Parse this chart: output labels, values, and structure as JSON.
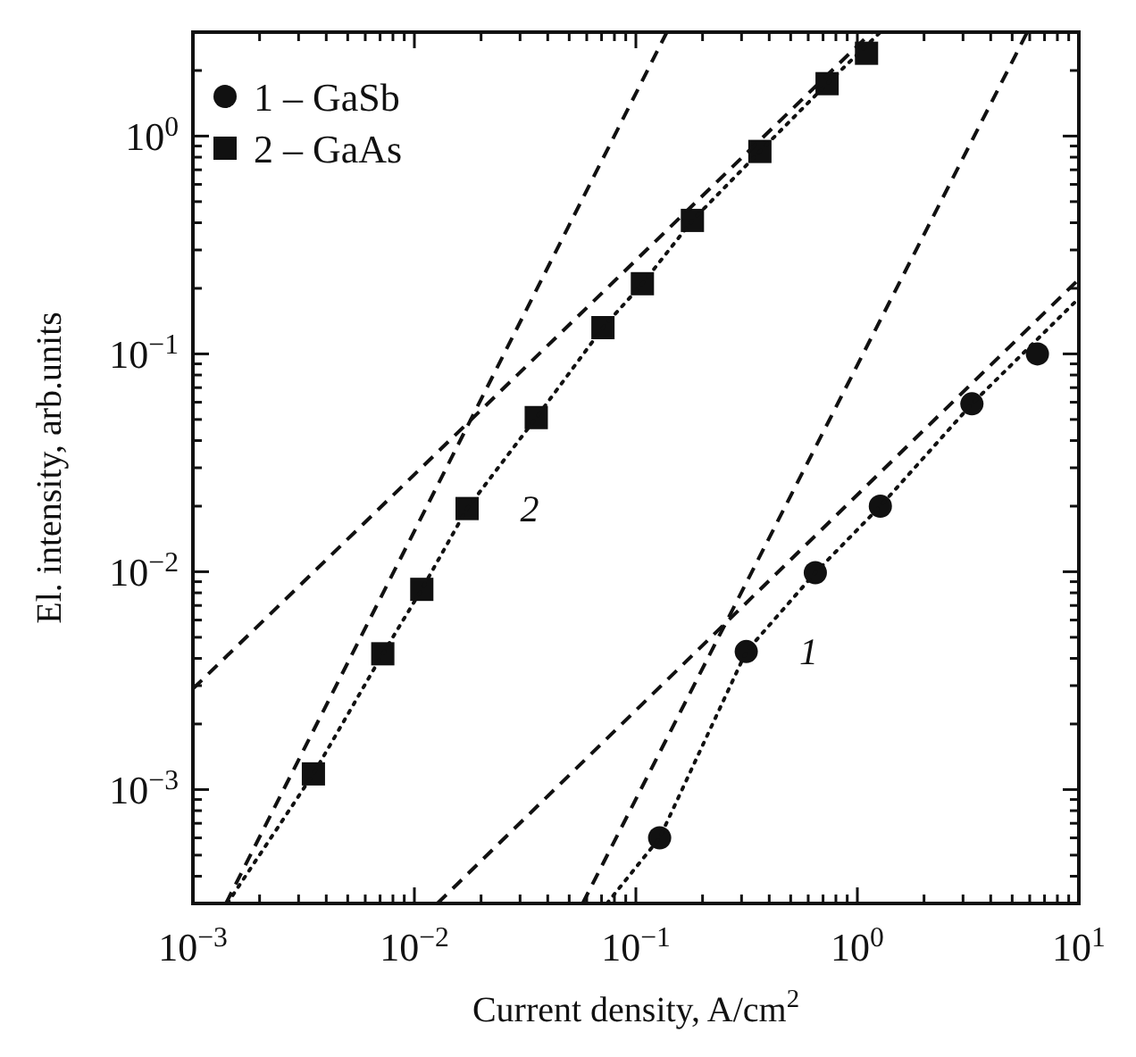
{
  "chart_data": {
    "type": "scatter",
    "xlabel": "Current density, A/cm$^{2}$",
    "ylabel": "El. intensity, arb.units",
    "log": "xy",
    "grid": false,
    "legend": "top left",
    "xlim": [
      0.001,
      10
    ],
    "ylim": [
      0.0003,
      3
    ],
    "xticks": [
      {
        "value": 0.001,
        "label": "10$^{−3}$"
      },
      {
        "value": 0.002,
        "label": null
      },
      {
        "value": 0.003,
        "label": null
      },
      {
        "value": 0.004,
        "label": null
      },
      {
        "value": 0.005,
        "label": null
      },
      {
        "value": 0.006,
        "label": null
      },
      {
        "value": 0.007,
        "label": null
      },
      {
        "value": 0.008,
        "label": null
      },
      {
        "value": 0.009,
        "label": null
      },
      {
        "value": 0.01,
        "label": "10$^{−2}$"
      },
      {
        "value": 0.02,
        "label": null
      },
      {
        "value": 0.03,
        "label": null
      },
      {
        "value": 0.04,
        "label": null
      },
      {
        "value": 0.05,
        "label": null
      },
      {
        "value": 0.06,
        "label": null
      },
      {
        "value": 0.07,
        "label": null
      },
      {
        "value": 0.08,
        "label": null
      },
      {
        "value": 0.09,
        "label": null
      },
      {
        "value": 0.1,
        "label": "10$^{−1}$"
      },
      {
        "value": 0.2,
        "label": null
      },
      {
        "value": 0.3,
        "label": null
      },
      {
        "value": 0.4,
        "label": null
      },
      {
        "value": 0.5,
        "label": null
      },
      {
        "value": 0.6,
        "label": null
      },
      {
        "value": 0.7,
        "label": null
      },
      {
        "value": 0.8,
        "label": null
      },
      {
        "value": 0.9,
        "label": null
      },
      {
        "value": 1,
        "label": "10$^{0}$"
      },
      {
        "value": 2,
        "label": null
      },
      {
        "value": 3,
        "label": null
      },
      {
        "value": 4,
        "label": null
      },
      {
        "value": 5,
        "label": null
      },
      {
        "value": 6,
        "label": null
      },
      {
        "value": 7,
        "label": null
      },
      {
        "value": 8,
        "label": null
      },
      {
        "value": 9,
        "label": null
      },
      {
        "value": 10,
        "label": "10$^{1}$"
      }
    ],
    "yticks": [
      {
        "value": 0.0004,
        "label": null
      },
      {
        "value": 0.0005,
        "label": null
      },
      {
        "value": 0.0006,
        "label": null
      },
      {
        "value": 0.0007,
        "label": null
      },
      {
        "value": 0.0008,
        "label": null
      },
      {
        "value": 0.0009,
        "label": null
      },
      {
        "value": 0.001,
        "label": "10$^{−3}$"
      },
      {
        "value": 0.002,
        "label": null
      },
      {
        "value": 0.003,
        "label": null
      },
      {
        "value": 0.004,
        "label": null
      },
      {
        "value": 0.005,
        "label": null
      },
      {
        "value": 0.006,
        "label": null
      },
      {
        "value": 0.007,
        "label": null
      },
      {
        "value": 0.008,
        "label": null
      },
      {
        "value": 0.009,
        "label": null
      },
      {
        "value": 0.01,
        "label": "10$^{−2}$"
      },
      {
        "value": 0.02,
        "label": null
      },
      {
        "value": 0.03,
        "label": null
      },
      {
        "value": 0.04,
        "label": null
      },
      {
        "value": 0.05,
        "label": null
      },
      {
        "value": 0.06,
        "label": null
      },
      {
        "value": 0.07,
        "label": null
      },
      {
        "value": 0.08,
        "label": null
      },
      {
        "value": 0.09,
        "label": null
      },
      {
        "value": 0.1,
        "label": "10$^{−1}$"
      },
      {
        "value": 0.2,
        "label": null
      },
      {
        "value": 0.3,
        "label": null
      },
      {
        "value": 0.4,
        "label": null
      },
      {
        "value": 0.5,
        "label": null
      },
      {
        "value": 0.6,
        "label": null
      },
      {
        "value": 0.7,
        "label": null
      },
      {
        "value": 0.8,
        "label": null
      },
      {
        "value": 0.9,
        "label": null
      },
      {
        "value": 1,
        "label": "10$^{0}$"
      },
      {
        "value": 2,
        "label": null
      }
    ],
    "series": [
      {
        "name": "1 – GaSb",
        "type": "scatter",
        "marker": "circle",
        "color": "#111111",
        "x": [
          0.128,
          0.315,
          0.646,
          1.27,
          3.29,
          6.5
        ],
        "values": [
          0.0006,
          0.0043,
          0.0099,
          0.02,
          0.059,
          0.1
        ]
      },
      {
        "name": "2 – GaAs",
        "type": "scatter",
        "marker": "square",
        "color": "#111111",
        "x": [
          0.0035,
          0.0072,
          0.0108,
          0.0173,
          0.0355,
          0.071,
          0.107,
          0.18,
          0.363,
          0.73,
          1.1
        ],
        "values": [
          0.00118,
          0.0042,
          0.0083,
          0.0195,
          0.051,
          0.132,
          0.21,
          0.41,
          0.85,
          1.74,
          2.4
        ]
      },
      {
        "type": "line",
        "marker": "none",
        "line_style": "dotted",
        "color": "#111111",
        "x": [
          0.074,
          0.128,
          0.315,
          0.646,
          1.27,
          3.29,
          10
        ],
        "values": [
          0.0003,
          0.0006,
          0.0043,
          0.0099,
          0.02,
          0.059,
          0.18
        ]
      },
      {
        "type": "line",
        "marker": "none",
        "line_style": "dotted",
        "color": "#111111",
        "x": [
          0.00143,
          0.0035,
          0.0072,
          0.0108,
          0.0173,
          0.0355,
          0.071,
          0.107,
          0.18,
          0.363,
          0.73,
          1.27
        ],
        "values": [
          0.0003,
          0.00118,
          0.0042,
          0.0083,
          0.0195,
          0.051,
          0.132,
          0.21,
          0.41,
          0.85,
          1.74,
          3
        ]
      },
      {
        "type": "line",
        "marker": "none",
        "line_style": "dashed",
        "color": "#111111",
        "x": [
          0.00141,
          0.138
        ],
        "values": [
          0.0003,
          3
        ]
      },
      {
        "type": "line",
        "marker": "none",
        "line_style": "dashed",
        "color": "#111111",
        "x": [
          0.001,
          1.16
        ],
        "values": [
          0.0029,
          3
        ]
      },
      {
        "type": "line",
        "marker": "none",
        "line_style": "dashed",
        "color": "#111111",
        "x": [
          0.0575,
          5.85
        ],
        "values": [
          0.0003,
          3
        ]
      },
      {
        "type": "line",
        "marker": "none",
        "line_style": "dashed",
        "color": "#111111",
        "x": [
          0.0127,
          10
        ],
        "values": [
          0.0003,
          0.22
        ]
      }
    ],
    "annotations": [
      {
        "text": "2",
        "x": 0.0173,
        "y": 0.0195
      },
      {
        "text": "1",
        "x": 0.315,
        "y": 0.0043
      }
    ]
  }
}
